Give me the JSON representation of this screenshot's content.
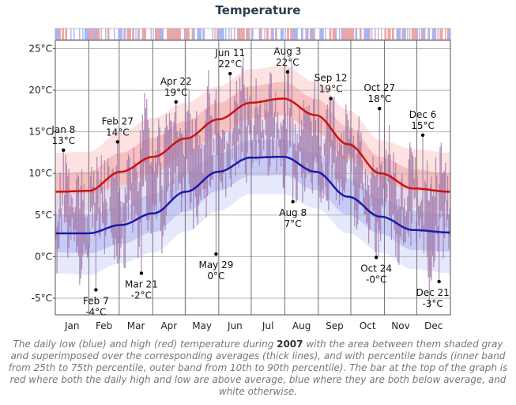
{
  "chart_data": {
    "type": "line",
    "title": "Temperature",
    "ylim": [
      -7,
      26
    ],
    "y_ticks": [
      {
        "v": 25,
        "label": "25°C"
      },
      {
        "v": 20,
        "label": "20°C"
      },
      {
        "v": 15,
        "label": "15°C"
      },
      {
        "v": 10,
        "label": "10°C"
      },
      {
        "v": 5,
        "label": "5°C"
      },
      {
        "v": 0,
        "label": "0°C"
      },
      {
        "v": -5,
        "label": "-5°C"
      }
    ],
    "month_labels": [
      "Jan",
      "Feb",
      "Mar",
      "Apr",
      "May",
      "Jun",
      "Jul",
      "Aug",
      "Sep",
      "Oct",
      "Nov",
      "Dec"
    ],
    "grid": true,
    "series": [
      {
        "name": "high",
        "color": "#cc1111",
        "avg_days": [
          0,
          30,
          60,
          90,
          120,
          150,
          180,
          210,
          240,
          270,
          300,
          330,
          364
        ],
        "avg_values": [
          7.8,
          7.9,
          10.2,
          12.0,
          14.2,
          16.5,
          18.5,
          19.0,
          17.0,
          13.5,
          10.0,
          8.2,
          7.8
        ],
        "p10_values": [
          3.0,
          3.2,
          5.5,
          7.5,
          10.0,
          12.5,
          14.5,
          15.0,
          13.0,
          9.5,
          6.0,
          3.5,
          3.0
        ],
        "p25_values": [
          5.5,
          5.6,
          8.0,
          10.0,
          12.2,
          14.6,
          16.6,
          17.0,
          15.0,
          11.5,
          8.0,
          5.9,
          5.5
        ],
        "p75_values": [
          10.0,
          10.2,
          12.5,
          14.3,
          16.3,
          18.5,
          20.5,
          21.0,
          19.0,
          15.6,
          12.0,
          10.5,
          10.0
        ],
        "p90_values": [
          12.5,
          12.6,
          15.0,
          16.7,
          18.5,
          20.5,
          22.5,
          23.0,
          21.0,
          17.6,
          14.0,
          12.9,
          12.5
        ]
      },
      {
        "name": "low",
        "color": "#1a1aaa",
        "avg_days": [
          0,
          30,
          60,
          90,
          120,
          150,
          180,
          210,
          240,
          270,
          300,
          330,
          364
        ],
        "avg_values": [
          2.8,
          2.8,
          3.8,
          5.2,
          7.8,
          10.2,
          11.9,
          12.0,
          10.2,
          7.2,
          4.8,
          3.2,
          2.9
        ],
        "p10_values": [
          -2.0,
          -2.2,
          -0.8,
          0.5,
          3.0,
          5.5,
          7.5,
          7.5,
          5.8,
          2.8,
          0.5,
          -1.5,
          -2.0
        ],
        "p25_values": [
          0.5,
          0.4,
          1.5,
          2.9,
          5.4,
          7.9,
          9.7,
          9.8,
          8.0,
          5.0,
          2.7,
          0.8,
          0.6
        ],
        "p75_values": [
          5.0,
          5.0,
          6.0,
          7.5,
          10.2,
          12.4,
          14.0,
          14.1,
          12.4,
          9.4,
          7.0,
          5.5,
          5.1
        ],
        "p90_values": [
          7.5,
          7.6,
          8.6,
          10.0,
          12.5,
          14.6,
          16.2,
          16.3,
          14.6,
          11.6,
          9.2,
          7.9,
          7.6
        ]
      }
    ],
    "annotations": [
      {
        "day": 7,
        "value": 12.8,
        "date": "Jan 8",
        "temp": "13°C",
        "pos": "above"
      },
      {
        "day": 37,
        "value": -4.0,
        "date": "Feb 7",
        "temp": "-4°C",
        "pos": "below"
      },
      {
        "day": 57,
        "value": 13.8,
        "date": "Feb 27",
        "temp": "14°C",
        "pos": "above"
      },
      {
        "day": 79,
        "value": -2.0,
        "date": "Mar 21",
        "temp": "-2°C",
        "pos": "below"
      },
      {
        "day": 111,
        "value": 18.6,
        "date": "Apr 22",
        "temp": "19°C",
        "pos": "above"
      },
      {
        "day": 148,
        "value": 0.3,
        "date": "May 29",
        "temp": "0°C",
        "pos": "below"
      },
      {
        "day": 161,
        "value": 22.0,
        "date": "Jun 11",
        "temp": "22°C",
        "pos": "above"
      },
      {
        "day": 214,
        "value": 22.2,
        "date": "Aug 3",
        "temp": "22°C",
        "pos": "above"
      },
      {
        "day": 219,
        "value": 6.6,
        "date": "Aug 8",
        "temp": "7°C",
        "pos": "below"
      },
      {
        "day": 254,
        "value": 19.0,
        "date": "Sep 12",
        "temp": "19°C",
        "pos": "above"
      },
      {
        "day": 296,
        "value": -0.1,
        "date": "Oct 24",
        "temp": "-0°C",
        "pos": "below"
      },
      {
        "day": 299,
        "value": 17.8,
        "date": "Oct 27",
        "temp": "18°C",
        "pos": "above"
      },
      {
        "day": 339,
        "value": 14.6,
        "date": "Dec 6",
        "temp": "15°C",
        "pos": "above"
      },
      {
        "day": 354,
        "value": -3.0,
        "date": "Dec 21",
        "temp": "-3°C",
        "pos": "below"
      }
    ],
    "colors": {
      "high": "#cc1111",
      "low": "#1a1aaa",
      "high_outer_band": "#fde0e0",
      "high_inner_band": "#f6b8b8",
      "low_outer_band": "#dde1fb",
      "low_inner_band": "#b6bef3",
      "overlap": "#b89cc6",
      "daily_bar": "#a37aa9",
      "status_above": "#f0a3a3",
      "status_below": "#aab3f0"
    }
  },
  "caption": {
    "before_year": "The daily low (blue) and high (red) temperature during ",
    "year": "2007",
    "after_year": " with the area between them shaded gray and superimposed over the corresponding averages (thick lines), and with percentile bands (inner band from 25th to 75th percentile, outer band from 10th to 90th percentile). The bar at the top of the graph is red where both the daily high and low are above average, blue where they are both below average, and white otherwise."
  }
}
